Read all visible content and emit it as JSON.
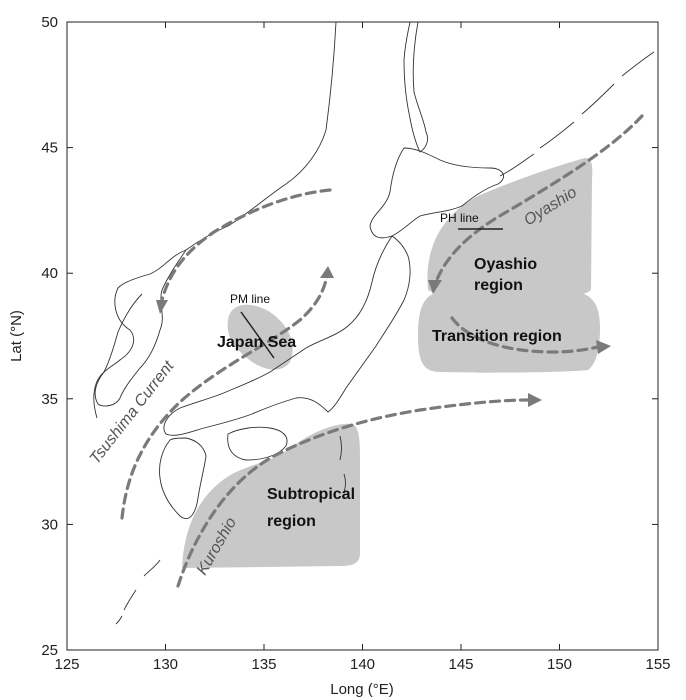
{
  "axes": {
    "x_label": "Long (°E)",
    "y_label": "Lat (°N)",
    "x_ticks": [
      "125",
      "130",
      "135",
      "140",
      "145",
      "150",
      "155"
    ],
    "y_ticks": [
      "25",
      "30",
      "35",
      "40",
      "45",
      "50"
    ]
  },
  "regions": {
    "japan_sea": "Japan Sea",
    "oyashio_line1": "Oyashio",
    "oyashio_line2": "region",
    "transition": "Transition region",
    "subtropical_line1": "Subtropical",
    "subtropical_line2": "region"
  },
  "currents": {
    "tsushima": "Tsushima Current",
    "kuroshio": "Kuroshio",
    "oyashio": "Oyashio"
  },
  "sections": {
    "pm_line": "PM line",
    "ph_line": "PH line"
  },
  "colors": {
    "region_fill": "#c8c8c8",
    "current_stroke": "#7a7a7a",
    "coastline": "#333333"
  }
}
